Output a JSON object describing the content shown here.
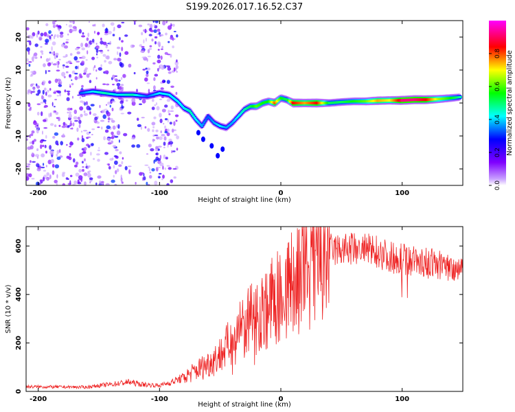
{
  "title": "S199.2026.017.16.52.C37",
  "chart_data": [
    {
      "type": "heatmap",
      "name": "spectrogram",
      "xlabel": "Height of straight line (km)",
      "ylabel": "Frequency (Hz)",
      "xlim": [
        -210,
        150
      ],
      "ylim": [
        -25,
        25
      ],
      "xticks": [
        -200,
        -100,
        0,
        100
      ],
      "yticks": [
        -20,
        -10,
        0,
        10,
        20
      ],
      "colorbar": {
        "label": "Normalized spectral amplitude",
        "range": [
          0.0,
          1.0
        ],
        "ticks": [
          0.0,
          0.2,
          0.4,
          0.6,
          0.8
        ],
        "tick_labels": [
          "0.0",
          "0.2",
          "0.4",
          "0.6",
          "0.8"
        ],
        "colors": [
          "#ffffff",
          "#7f00ff",
          "#0000ff",
          "#00ffff",
          "#00ff00",
          "#ffff00",
          "#ff0000",
          "#ff00ff"
        ]
      },
      "ridge": [
        {
          "x": -165,
          "f": 3,
          "a": 0.35
        },
        {
          "x": -155,
          "f": 3.5,
          "a": 0.45
        },
        {
          "x": -145,
          "f": 3,
          "a": 0.5
        },
        {
          "x": -135,
          "f": 2.5,
          "a": 0.45
        },
        {
          "x": -122,
          "f": 2.5,
          "a": 0.5
        },
        {
          "x": -110,
          "f": 2,
          "a": 0.35
        },
        {
          "x": -100,
          "f": 3,
          "a": 0.45
        },
        {
          "x": -92,
          "f": 2.5,
          "a": 0.45
        },
        {
          "x": -85,
          "f": 0.5,
          "a": 0.45
        },
        {
          "x": -80,
          "f": -1.5,
          "a": 0.45
        },
        {
          "x": -75,
          "f": -2.5,
          "a": 0.5
        },
        {
          "x": -70,
          "f": -5,
          "a": 0.45
        },
        {
          "x": -65,
          "f": -7,
          "a": 0.4
        },
        {
          "x": -60,
          "f": -4,
          "a": 0.35
        },
        {
          "x": -55,
          "f": -6,
          "a": 0.4
        },
        {
          "x": -50,
          "f": -7,
          "a": 0.45
        },
        {
          "x": -45,
          "f": -7.5,
          "a": 0.4
        },
        {
          "x": -40,
          "f": -6,
          "a": 0.4
        },
        {
          "x": -35,
          "f": -4,
          "a": 0.45
        },
        {
          "x": -30,
          "f": -2,
          "a": 0.5
        },
        {
          "x": -25,
          "f": -1,
          "a": 0.55
        },
        {
          "x": -20,
          "f": -1,
          "a": 0.65
        },
        {
          "x": -15,
          "f": 0,
          "a": 0.6
        },
        {
          "x": -10,
          "f": 0.5,
          "a": 0.6
        },
        {
          "x": -5,
          "f": 0,
          "a": 0.85
        },
        {
          "x": 0,
          "f": 1.5,
          "a": 0.6
        },
        {
          "x": 5,
          "f": 1,
          "a": 0.55
        },
        {
          "x": 10,
          "f": 0,
          "a": 0.9
        },
        {
          "x": 20,
          "f": 0,
          "a": 0.8
        },
        {
          "x": 30,
          "f": 0,
          "a": 0.9
        },
        {
          "x": 40,
          "f": 0,
          "a": 0.55
        },
        {
          "x": 50,
          "f": 0.3,
          "a": 0.55
        },
        {
          "x": 60,
          "f": 0.5,
          "a": 0.6
        },
        {
          "x": 70,
          "f": 0.5,
          "a": 0.65
        },
        {
          "x": 80,
          "f": 0.7,
          "a": 0.8
        },
        {
          "x": 90,
          "f": 0.8,
          "a": 0.75
        },
        {
          "x": 100,
          "f": 0.8,
          "a": 0.95
        },
        {
          "x": 110,
          "f": 1,
          "a": 0.95
        },
        {
          "x": 120,
          "f": 1,
          "a": 0.9
        },
        {
          "x": 130,
          "f": 1.2,
          "a": 0.7
        },
        {
          "x": 140,
          "f": 1.5,
          "a": 0.6
        },
        {
          "x": 148,
          "f": 1.8,
          "a": 0.5
        }
      ],
      "noise_region": [
        -210,
        -85
      ]
    },
    {
      "type": "line",
      "name": "snr",
      "series": [
        {
          "name": "SNR",
          "color": "#ee2222"
        }
      ],
      "xlabel": "Height of straight line (km)",
      "ylabel": "SNR (10 * v/v)",
      "xlim": [
        -210,
        150
      ],
      "ylim": [
        0,
        680
      ],
      "xticks": [
        -200,
        -100,
        0,
        100
      ],
      "yticks": [
        0,
        200,
        400,
        600
      ],
      "envelope": [
        [
          -210,
          20
        ],
        [
          -160,
          18
        ],
        [
          -150,
          25
        ],
        [
          -140,
          30
        ],
        [
          -125,
          40
        ],
        [
          -115,
          30
        ],
        [
          -100,
          25
        ],
        [
          -90,
          40
        ],
        [
          -80,
          60
        ],
        [
          -70,
          90
        ],
        [
          -60,
          120
        ],
        [
          -50,
          160
        ],
        [
          -40,
          220
        ],
        [
          -30,
          280
        ],
        [
          -20,
          330
        ],
        [
          -10,
          370
        ],
        [
          0,
          420
        ],
        [
          10,
          470
        ],
        [
          20,
          520
        ],
        [
          30,
          570
        ],
        [
          40,
          590
        ],
        [
          50,
          590
        ],
        [
          60,
          595
        ],
        [
          70,
          590
        ],
        [
          80,
          585
        ],
        [
          90,
          560
        ],
        [
          100,
          555
        ],
        [
          110,
          545
        ],
        [
          120,
          535
        ],
        [
          130,
          530
        ],
        [
          140,
          515
        ],
        [
          150,
          520
        ]
      ]
    }
  ]
}
